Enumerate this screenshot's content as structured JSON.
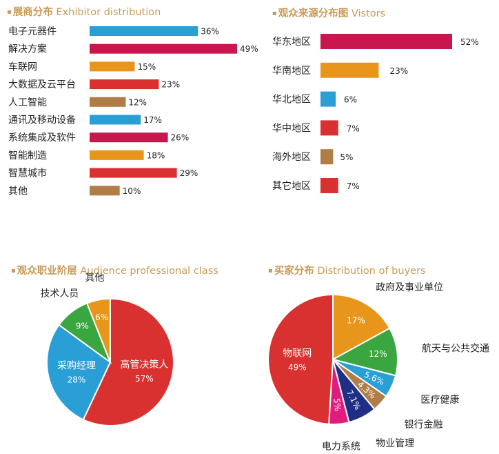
{
  "colors": {
    "blue": "#2a9fd6",
    "crimson": "#c8174e",
    "orange": "#e8961b",
    "red": "#d93030",
    "brown": "#b07d47",
    "green": "#3aa63f",
    "navy": "#1f2f86",
    "pink": "#e01c7e",
    "title": "#c99a57"
  },
  "sections": {
    "exhibitor": {
      "bullet": "▪",
      "zh": "展商分布",
      "en": "Exhibitor distribution"
    },
    "visitors": {
      "bullet": "▪",
      "zh": "观众来源分布图",
      "en": "Vistors"
    },
    "audience": {
      "bullet": "▪",
      "zh": "观众职业阶层",
      "en": "Audience professional class"
    },
    "buyers": {
      "bullet": "▪",
      "zh": "买家分布",
      "en": "Distribution of buyers"
    }
  },
  "chart_data": [
    {
      "id": "exhibitor",
      "type": "bar",
      "orientation": "horizontal",
      "title": "展商分布 Exhibitor distribution",
      "categories": [
        "电子元器件",
        "解决方案",
        "车联网",
        "大数据及云平台",
        "人工智能",
        "通讯及移动设备",
        "系统集成及软件",
        "智能制造",
        "智慧城市",
        "其他"
      ],
      "values": [
        36,
        49,
        15,
        23,
        12,
        17,
        26,
        18,
        29,
        10
      ],
      "value_labels": [
        "36%",
        "49%",
        "15%",
        "23%",
        "12%",
        "17%",
        "26%",
        "18%",
        "29%",
        "10%"
      ],
      "colors": [
        "blue",
        "crimson",
        "orange",
        "red",
        "brown",
        "blue",
        "crimson",
        "orange",
        "red",
        "brown"
      ],
      "xlim": [
        0,
        49
      ],
      "grid": false
    },
    {
      "id": "visitors",
      "type": "bar",
      "orientation": "horizontal",
      "title": "观众来源分布图 Vistors",
      "categories": [
        "华东地区",
        "华南地区",
        "华北地区",
        "华中地区",
        "海外地区",
        "其它地区"
      ],
      "values": [
        52,
        23,
        6,
        7,
        5,
        7
      ],
      "value_labels": [
        "52%",
        "23%",
        "6%",
        "7%",
        "5%",
        "7%"
      ],
      "colors": [
        "crimson",
        "orange",
        "blue",
        "red",
        "brown",
        "red"
      ],
      "xlim": [
        0,
        52
      ],
      "grid": false
    },
    {
      "id": "audience",
      "type": "pie",
      "title": "观众职业阶层 Audience professional class",
      "slices": [
        {
          "label": "高管决策人",
          "value": 57,
          "value_label": "57%",
          "color": "red",
          "label_inside": true
        },
        {
          "label": "采购经理",
          "value": 28,
          "value_label": "28%",
          "color": "blue",
          "label_inside": true
        },
        {
          "label": "技术人员",
          "value": 9,
          "value_label": "9%",
          "color": "green",
          "label_inside": false
        },
        {
          "label": "其他",
          "value": 6,
          "value_label": "6%",
          "color": "orange",
          "label_inside": false
        }
      ]
    },
    {
      "id": "buyers",
      "type": "pie",
      "title": "买家分布 Distribution of buyers",
      "slices": [
        {
          "label": "政府及事业单位",
          "value": 17,
          "value_label": "17%",
          "color": "orange",
          "label_inside": false
        },
        {
          "label": "航天与公共交通",
          "value": 12,
          "value_label": "12%",
          "color": "green",
          "label_inside": false
        },
        {
          "label": "医疗健康",
          "value": 5.6,
          "value_label": "5.6%",
          "color": "blue",
          "label_inside": false
        },
        {
          "label": "银行金融",
          "value": 4.3,
          "value_label": "4.3%",
          "color": "brown",
          "label_inside": false
        },
        {
          "label": "物业管理",
          "value": 7.1,
          "value_label": "7.1%",
          "color": "navy",
          "label_inside": false
        },
        {
          "label": "电力系统",
          "value": 5,
          "value_label": "5%",
          "color": "pink",
          "label_inside": false
        },
        {
          "label": "物联网",
          "value": 49,
          "value_label": "49%",
          "color": "red",
          "label_inside": true
        }
      ]
    }
  ]
}
